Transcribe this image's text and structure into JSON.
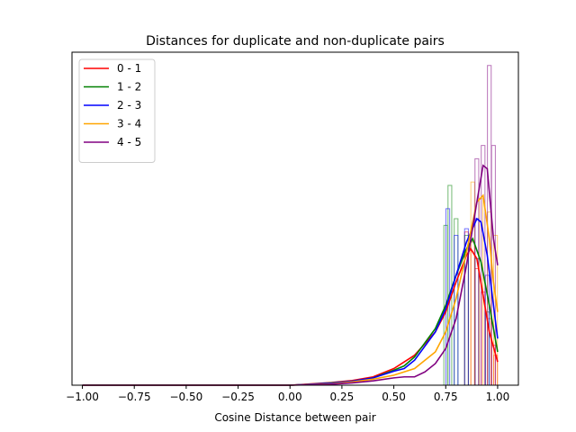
{
  "chart_data": {
    "type": "line",
    "title": "Distances for duplicate and non-duplicate pairs",
    "xlabel": "Cosine Distance between pair",
    "ylabel": "",
    "xlim": [
      -1.05,
      1.1
    ],
    "ylim": [
      0,
      1
    ],
    "show_yticks": false,
    "grid": false,
    "legend_position": "top-left",
    "xticks": [
      -1.0,
      -0.75,
      -0.5,
      -0.25,
      0.0,
      0.25,
      0.5,
      0.75,
      1.0
    ],
    "xtick_labels": [
      "−1.00",
      "−0.75",
      "−0.50",
      "−0.25",
      "0.00",
      "0.25",
      "0.50",
      "0.75",
      "1.00"
    ],
    "series": [
      {
        "name": "0 - 1",
        "color": "#ff0000",
        "kde": [
          [
            -1.0,
            0.0
          ],
          [
            0.0,
            0.0
          ],
          [
            0.1,
            0.004
          ],
          [
            0.2,
            0.008
          ],
          [
            0.3,
            0.014
          ],
          [
            0.4,
            0.025
          ],
          [
            0.5,
            0.05
          ],
          [
            0.6,
            0.09
          ],
          [
            0.7,
            0.16
          ],
          [
            0.75,
            0.22
          ],
          [
            0.8,
            0.31
          ],
          [
            0.85,
            0.39
          ],
          [
            0.87,
            0.41
          ],
          [
            0.9,
            0.38
          ],
          [
            0.93,
            0.27
          ],
          [
            0.96,
            0.16
          ],
          [
            1.0,
            0.07
          ]
        ],
        "hist": [
          [
            0.85,
            0.46
          ],
          [
            0.88,
            0.43
          ],
          [
            0.9,
            0.35
          ],
          [
            0.93,
            0.28
          ],
          [
            0.96,
            0.2
          ],
          [
            0.98,
            0.12
          ],
          [
            0.99,
            0.09
          ]
        ]
      },
      {
        "name": "1 - 2",
        "color": "#008000",
        "kde": [
          [
            -1.0,
            0.0
          ],
          [
            0.0,
            0.0
          ],
          [
            0.1,
            0.003
          ],
          [
            0.2,
            0.007
          ],
          [
            0.3,
            0.012
          ],
          [
            0.4,
            0.022
          ],
          [
            0.5,
            0.045
          ],
          [
            0.55,
            0.058
          ],
          [
            0.6,
            0.085
          ],
          [
            0.7,
            0.17
          ],
          [
            0.75,
            0.24
          ],
          [
            0.8,
            0.33
          ],
          [
            0.85,
            0.41
          ],
          [
            0.88,
            0.44
          ],
          [
            0.92,
            0.37
          ],
          [
            0.96,
            0.24
          ],
          [
            1.0,
            0.1
          ]
        ],
        "hist": [
          [
            0.75,
            0.48
          ],
          [
            0.77,
            0.6
          ],
          [
            0.8,
            0.5
          ],
          [
            0.85,
            0.45
          ],
          [
            0.9,
            0.38
          ],
          [
            0.95,
            0.22
          ]
        ]
      },
      {
        "name": "2 - 3",
        "color": "#0000ff",
        "kde": [
          [
            -1.0,
            0.0
          ],
          [
            0.0,
            0.0
          ],
          [
            0.1,
            0.003
          ],
          [
            0.2,
            0.006
          ],
          [
            0.3,
            0.012
          ],
          [
            0.4,
            0.022
          ],
          [
            0.5,
            0.042
          ],
          [
            0.55,
            0.05
          ],
          [
            0.6,
            0.075
          ],
          [
            0.7,
            0.16
          ],
          [
            0.75,
            0.23
          ],
          [
            0.8,
            0.33
          ],
          [
            0.85,
            0.43
          ],
          [
            0.9,
            0.5
          ],
          [
            0.92,
            0.49
          ],
          [
            0.95,
            0.39
          ],
          [
            1.0,
            0.14
          ]
        ],
        "hist": [
          [
            0.76,
            0.53
          ],
          [
            0.8,
            0.45
          ],
          [
            0.85,
            0.47
          ],
          [
            0.9,
            0.5
          ],
          [
            0.95,
            0.33
          ]
        ]
      },
      {
        "name": "3 - 4",
        "color": "#ffa500",
        "kde": [
          [
            -1.0,
            0.0
          ],
          [
            0.0,
            0.0
          ],
          [
            0.2,
            0.004
          ],
          [
            0.3,
            0.01
          ],
          [
            0.4,
            0.018
          ],
          [
            0.5,
            0.03
          ],
          [
            0.6,
            0.05
          ],
          [
            0.7,
            0.1
          ],
          [
            0.75,
            0.16
          ],
          [
            0.8,
            0.26
          ],
          [
            0.85,
            0.4
          ],
          [
            0.9,
            0.55
          ],
          [
            0.93,
            0.57
          ],
          [
            0.96,
            0.44
          ],
          [
            0.98,
            0.31
          ],
          [
            1.0,
            0.22
          ]
        ],
        "hist": [
          [
            0.88,
            0.61
          ],
          [
            0.92,
            0.56
          ],
          [
            0.96,
            0.52
          ],
          [
            0.99,
            0.45
          ]
        ]
      },
      {
        "name": "4 - 5",
        "color": "#800080",
        "kde": [
          [
            -1.0,
            0.0
          ],
          [
            0.0,
            0.0
          ],
          [
            0.2,
            0.003
          ],
          [
            0.3,
            0.007
          ],
          [
            0.4,
            0.013
          ],
          [
            0.5,
            0.022
          ],
          [
            0.55,
            0.025
          ],
          [
            0.6,
            0.025
          ],
          [
            0.65,
            0.04
          ],
          [
            0.7,
            0.065
          ],
          [
            0.75,
            0.11
          ],
          [
            0.8,
            0.2
          ],
          [
            0.85,
            0.36
          ],
          [
            0.9,
            0.55
          ],
          [
            0.93,
            0.66
          ],
          [
            0.95,
            0.65
          ],
          [
            0.98,
            0.44
          ],
          [
            1.0,
            0.36
          ]
        ],
        "hist": [
          [
            0.9,
            0.68
          ],
          [
            0.93,
            0.72
          ],
          [
            0.96,
            0.96
          ],
          [
            0.98,
            0.72
          ]
        ]
      }
    ]
  }
}
